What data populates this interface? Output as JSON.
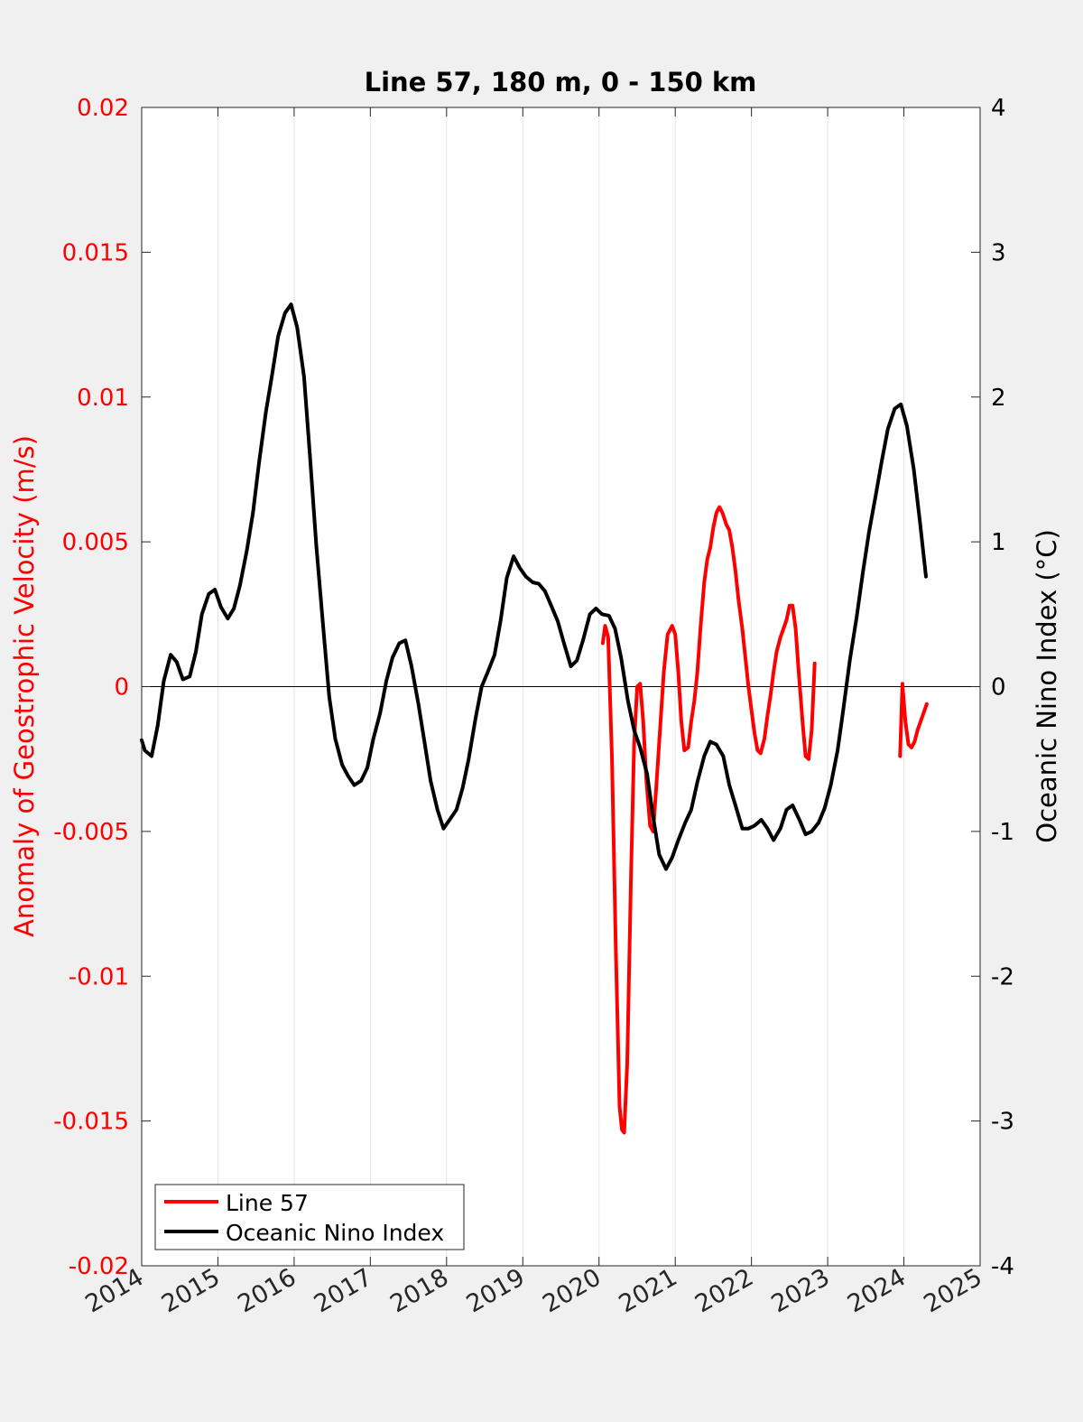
{
  "chart_data": {
    "type": "line",
    "title": "Line 57, 180 m, 0 - 150 km",
    "xlabel": "",
    "ylabel_left": "Anomaly of Geostrophic Velocity (m/s)",
    "ylabel_right": "Oceanic Nino Index (°C)",
    "xlim": [
      2014,
      2025
    ],
    "ylim_left": [
      -0.02,
      0.02
    ],
    "ylim_right": [
      -4,
      4
    ],
    "xticks": [
      "2014",
      "2015",
      "2016",
      "2017",
      "2018",
      "2019",
      "2020",
      "2021",
      "2022",
      "2023",
      "2024",
      "2025"
    ],
    "yticks_left": [
      "-0.02",
      "-0.015",
      "-0.01",
      "-0.005",
      "0",
      "0.005",
      "0.01",
      "0.015",
      "0.02"
    ],
    "yticks_right": [
      "-4",
      "-3",
      "-2",
      "-1",
      "0",
      "1",
      "2",
      "3",
      "4"
    ],
    "grid": "x",
    "zero_line": true,
    "legend_position": "bottom-left",
    "colors": {
      "left_axis": "#ff0000",
      "right_axis": "#000000",
      "background": "#f0f0f0",
      "plot_bg": "#ffffff"
    },
    "series": [
      {
        "name": "Line 57",
        "axis": "left",
        "color": "#ff0000",
        "segments": [
          [
            [
              2020.05,
              0.0015
            ],
            [
              2020.08,
              0.0021
            ],
            [
              2020.12,
              0.0017
            ],
            [
              2020.17,
              -0.0025
            ],
            [
              2020.22,
              -0.009
            ],
            [
              2020.27,
              -0.0145
            ],
            [
              2020.3,
              -0.0153
            ],
            [
              2020.33,
              -0.0154
            ],
            [
              2020.37,
              -0.013
            ],
            [
              2020.42,
              -0.0065
            ],
            [
              2020.46,
              -0.002
            ],
            [
              2020.5,
              0.0
            ],
            [
              2020.54,
              0.0001
            ],
            [
              2020.58,
              -0.0012
            ],
            [
              2020.62,
              -0.0032
            ],
            [
              2020.67,
              -0.0048
            ],
            [
              2020.71,
              -0.005
            ],
            [
              2020.75,
              -0.0035
            ],
            [
              2020.8,
              -0.0015
            ],
            [
              2020.85,
              0.0005
            ],
            [
              2020.9,
              0.0018
            ],
            [
              2020.96,
              0.0021
            ],
            [
              2021.0,
              0.0018
            ],
            [
              2021.04,
              0.0005
            ],
            [
              2021.08,
              -0.0012
            ],
            [
              2021.12,
              -0.0022
            ],
            [
              2021.17,
              -0.0021
            ],
            [
              2021.21,
              -0.0012
            ],
            [
              2021.25,
              -0.0005
            ],
            [
              2021.29,
              0.0005
            ],
            [
              2021.33,
              0.002
            ],
            [
              2021.38,
              0.0036
            ],
            [
              2021.42,
              0.0044
            ],
            [
              2021.46,
              0.0048
            ],
            [
              2021.5,
              0.0055
            ],
            [
              2021.54,
              0.006
            ],
            [
              2021.58,
              0.0062
            ],
            [
              2021.62,
              0.006
            ],
            [
              2021.67,
              0.0056
            ],
            [
              2021.71,
              0.0054
            ],
            [
              2021.75,
              0.0048
            ],
            [
              2021.79,
              0.004
            ],
            [
              2021.83,
              0.003
            ],
            [
              2021.88,
              0.002
            ],
            [
              2021.92,
              0.001
            ],
            [
              2021.96,
              0.0
            ],
            [
              2022.0,
              -0.0008
            ],
            [
              2022.04,
              -0.0016
            ],
            [
              2022.08,
              -0.0022
            ],
            [
              2022.12,
              -0.0023
            ],
            [
              2022.17,
              -0.0018
            ],
            [
              2022.21,
              -0.001
            ],
            [
              2022.25,
              -0.0003
            ],
            [
              2022.29,
              0.0005
            ],
            [
              2022.33,
              0.0012
            ],
            [
              2022.38,
              0.0017
            ],
            [
              2022.42,
              0.002
            ],
            [
              2022.46,
              0.0023
            ],
            [
              2022.5,
              0.0028
            ],
            [
              2022.54,
              0.0028
            ],
            [
              2022.58,
              0.002
            ],
            [
              2022.62,
              0.0005
            ],
            [
              2022.67,
              -0.0012
            ],
            [
              2022.71,
              -0.0024
            ],
            [
              2022.75,
              -0.0025
            ],
            [
              2022.79,
              -0.0015
            ],
            [
              2022.83,
              0.0008
            ]
          ],
          [
            [
              2023.95,
              -0.0024
            ],
            [
              2023.98,
              0.0001
            ],
            [
              2024.02,
              -0.0012
            ],
            [
              2024.06,
              -0.002
            ],
            [
              2024.1,
              -0.0021
            ],
            [
              2024.14,
              -0.0019
            ],
            [
              2024.18,
              -0.0015
            ],
            [
              2024.22,
              -0.0012
            ],
            [
              2024.26,
              -0.0009
            ],
            [
              2024.3,
              -0.0006
            ]
          ]
        ]
      },
      {
        "name": "Oceanic Nino Index",
        "axis": "right",
        "color": "#000000",
        "segments": [
          [
            [
              2014.0,
              -0.37
            ],
            [
              2014.04,
              -0.44
            ],
            [
              2014.13,
              -0.48
            ],
            [
              2014.21,
              -0.27
            ],
            [
              2014.29,
              0.04
            ],
            [
              2014.38,
              0.22
            ],
            [
              2014.46,
              0.17
            ],
            [
              2014.54,
              0.05
            ],
            [
              2014.63,
              0.07
            ],
            [
              2014.71,
              0.24
            ],
            [
              2014.79,
              0.5
            ],
            [
              2014.88,
              0.64
            ],
            [
              2014.96,
              0.67
            ],
            [
              2015.04,
              0.55
            ],
            [
              2015.13,
              0.47
            ],
            [
              2015.21,
              0.54
            ],
            [
              2015.29,
              0.7
            ],
            [
              2015.38,
              0.94
            ],
            [
              2015.46,
              1.2
            ],
            [
              2015.54,
              1.55
            ],
            [
              2015.63,
              1.9
            ],
            [
              2015.71,
              2.15
            ],
            [
              2015.79,
              2.42
            ],
            [
              2015.88,
              2.58
            ],
            [
              2015.96,
              2.64
            ],
            [
              2016.04,
              2.48
            ],
            [
              2016.13,
              2.14
            ],
            [
              2016.21,
              1.58
            ],
            [
              2016.29,
              0.98
            ],
            [
              2016.38,
              0.42
            ],
            [
              2016.46,
              -0.07
            ],
            [
              2016.54,
              -0.36
            ],
            [
              2016.63,
              -0.54
            ],
            [
              2016.71,
              -0.62
            ],
            [
              2016.79,
              -0.68
            ],
            [
              2016.88,
              -0.65
            ],
            [
              2016.96,
              -0.56
            ],
            [
              2017.04,
              -0.36
            ],
            [
              2017.13,
              -0.18
            ],
            [
              2017.21,
              0.04
            ],
            [
              2017.29,
              0.2
            ],
            [
              2017.38,
              0.3
            ],
            [
              2017.46,
              0.32
            ],
            [
              2017.54,
              0.14
            ],
            [
              2017.63,
              -0.12
            ],
            [
              2017.71,
              -0.38
            ],
            [
              2017.79,
              -0.65
            ],
            [
              2017.88,
              -0.85
            ],
            [
              2017.96,
              -0.98
            ],
            [
              2018.04,
              -0.92
            ],
            [
              2018.13,
              -0.85
            ],
            [
              2018.21,
              -0.7
            ],
            [
              2018.29,
              -0.5
            ],
            [
              2018.38,
              -0.22
            ],
            [
              2018.46,
              0.0
            ],
            [
              2018.54,
              0.1
            ],
            [
              2018.63,
              0.22
            ],
            [
              2018.71,
              0.46
            ],
            [
              2018.79,
              0.75
            ],
            [
              2018.88,
              0.9
            ],
            [
              2018.96,
              0.82
            ],
            [
              2019.04,
              0.76
            ],
            [
              2019.13,
              0.72
            ],
            [
              2019.21,
              0.71
            ],
            [
              2019.29,
              0.66
            ],
            [
              2019.38,
              0.55
            ],
            [
              2019.46,
              0.45
            ],
            [
              2019.54,
              0.3
            ],
            [
              2019.63,
              0.14
            ],
            [
              2019.71,
              0.18
            ],
            [
              2019.79,
              0.32
            ],
            [
              2019.88,
              0.5
            ],
            [
              2019.96,
              0.54
            ],
            [
              2020.04,
              0.5
            ],
            [
              2020.13,
              0.49
            ],
            [
              2020.21,
              0.4
            ],
            [
              2020.29,
              0.2
            ],
            [
              2020.38,
              -0.1
            ],
            [
              2020.46,
              -0.3
            ],
            [
              2020.54,
              -0.42
            ],
            [
              2020.63,
              -0.6
            ],
            [
              2020.71,
              -0.9
            ],
            [
              2020.79,
              -1.16
            ],
            [
              2020.88,
              -1.26
            ],
            [
              2020.96,
              -1.18
            ],
            [
              2021.04,
              -1.06
            ],
            [
              2021.13,
              -0.94
            ],
            [
              2021.21,
              -0.85
            ],
            [
              2021.29,
              -0.66
            ],
            [
              2021.38,
              -0.48
            ],
            [
              2021.46,
              -0.38
            ],
            [
              2021.54,
              -0.4
            ],
            [
              2021.63,
              -0.48
            ],
            [
              2021.71,
              -0.68
            ],
            [
              2021.79,
              -0.82
            ],
            [
              2021.88,
              -0.98
            ],
            [
              2021.96,
              -0.98
            ],
            [
              2022.04,
              -0.96
            ],
            [
              2022.13,
              -0.92
            ],
            [
              2022.21,
              -0.98
            ],
            [
              2022.29,
              -1.06
            ],
            [
              2022.38,
              -0.98
            ],
            [
              2022.46,
              -0.85
            ],
            [
              2022.54,
              -0.82
            ],
            [
              2022.63,
              -0.92
            ],
            [
              2022.71,
              -1.02
            ],
            [
              2022.79,
              -1.0
            ],
            [
              2022.88,
              -0.94
            ],
            [
              2022.96,
              -0.84
            ],
            [
              2023.04,
              -0.68
            ],
            [
              2023.13,
              -0.44
            ],
            [
              2023.21,
              -0.14
            ],
            [
              2023.29,
              0.18
            ],
            [
              2023.38,
              0.48
            ],
            [
              2023.46,
              0.78
            ],
            [
              2023.54,
              1.06
            ],
            [
              2023.63,
              1.32
            ],
            [
              2023.71,
              1.56
            ],
            [
              2023.79,
              1.78
            ],
            [
              2023.88,
              1.92
            ],
            [
              2023.96,
              1.95
            ],
            [
              2024.04,
              1.8
            ],
            [
              2024.13,
              1.5
            ],
            [
              2024.21,
              1.14
            ],
            [
              2024.29,
              0.76
            ]
          ]
        ]
      }
    ]
  }
}
